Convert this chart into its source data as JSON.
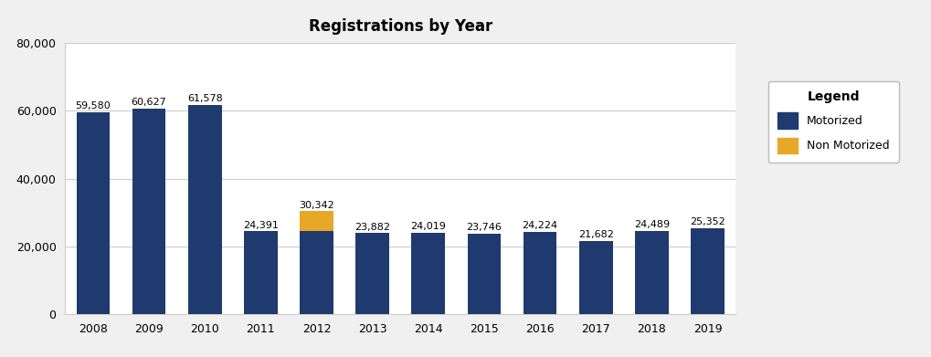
{
  "title": "Registrations by Year",
  "years": [
    2008,
    2009,
    2010,
    2011,
    2012,
    2013,
    2014,
    2015,
    2016,
    2017,
    2018,
    2019
  ],
  "motorized": [
    59580,
    60627,
    61578,
    24391,
    24391,
    23882,
    24019,
    23746,
    24224,
    21682,
    24489,
    25352
  ],
  "non_motorized": [
    0,
    0,
    0,
    0,
    5951,
    0,
    0,
    0,
    0,
    0,
    0,
    0
  ],
  "totals": [
    59580,
    60627,
    61578,
    24391,
    30342,
    23882,
    24019,
    23746,
    24224,
    21682,
    24489,
    25352
  ],
  "bar_color_motorized": "#1f3a6e",
  "bar_color_non_motorized": "#e8a827",
  "ylim": [
    0,
    80000
  ],
  "yticks": [
    0,
    20000,
    40000,
    60000,
    80000
  ],
  "background_color": "#f0f0f0",
  "plot_background_color": "#ffffff",
  "grid_color": "#cccccc",
  "legend_title": "Legend",
  "legend_labels": [
    "Motorized",
    "Non Motorized"
  ],
  "title_fontsize": 12,
  "tick_fontsize": 9,
  "label_fontsize": 8
}
